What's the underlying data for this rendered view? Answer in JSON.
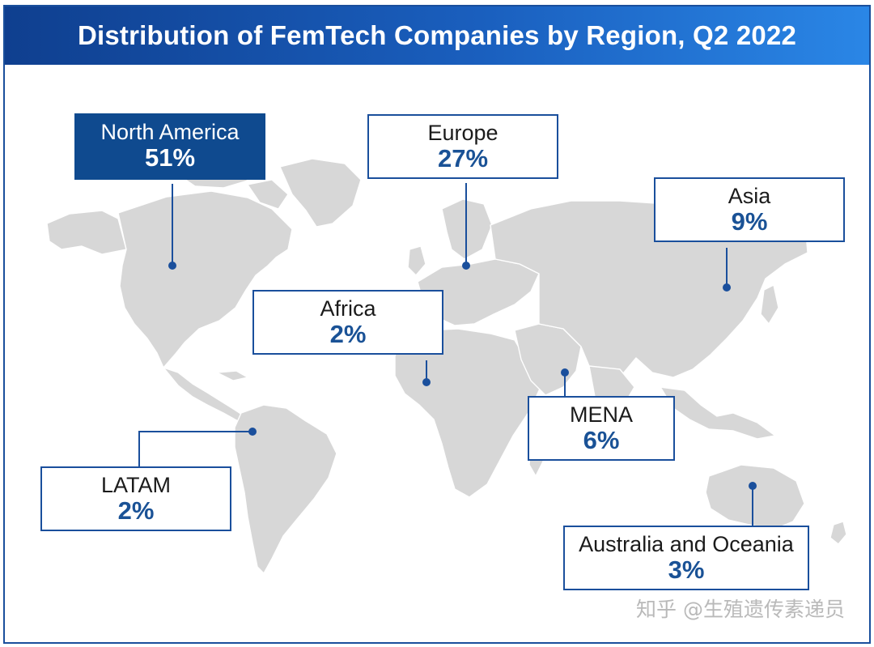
{
  "title": "Distribution of FemTech Companies by Region, Q2 2022",
  "colors": {
    "accent": "#1a4f9c",
    "label_dark": "#0f4a8f",
    "land": "#d7d7d7",
    "percent": "#1a5296"
  },
  "regions": {
    "north_america": {
      "name": "North America",
      "percent": "51%"
    },
    "europe": {
      "name": "Europe",
      "percent": "27%"
    },
    "asia": {
      "name": "Asia",
      "percent": "9%"
    },
    "africa": {
      "name": "Africa",
      "percent": "2%"
    },
    "mena": {
      "name": "MENA",
      "percent": "6%"
    },
    "latam": {
      "name": "LATAM",
      "percent": "2%"
    },
    "oceania": {
      "name": "Australia and Oceania",
      "percent": "3%"
    }
  },
  "watermark": "知乎 @生殖遗传素递员"
}
